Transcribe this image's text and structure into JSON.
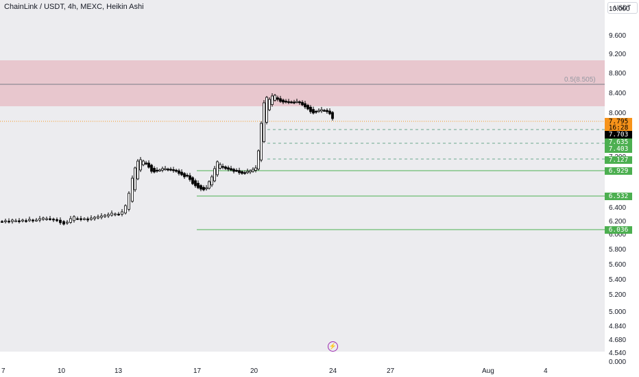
{
  "header": {
    "title": "ChainLink / USDT, 4h, MEXC, Heikin Ashi"
  },
  "price_axis": {
    "currency": "USDT",
    "ticks": [
      "10.000",
      "9.600",
      "9.200",
      "8.800",
      "8.400",
      "8.000",
      "7.200",
      "6.600",
      "6.400",
      "6.200",
      "6.000",
      "5.800",
      "5.600",
      "5.400",
      "5.200",
      "5.000",
      "4.840",
      "4.680",
      "4.540",
      "0.000"
    ]
  },
  "time_axis": {
    "ticks": [
      "7",
      "10",
      "13",
      "17",
      "20",
      "24",
      "27",
      "Aug",
      "4"
    ]
  },
  "price_tags": [
    {
      "text": "7.795",
      "kind": "current"
    },
    {
      "text": "16:28",
      "kind": "countdown"
    },
    {
      "text": "7.703",
      "kind": "last"
    },
    {
      "text": "7.635",
      "kind": "level"
    },
    {
      "text": "7.403",
      "kind": "level"
    },
    {
      "text": "7.127",
      "kind": "level"
    },
    {
      "text": "6.929",
      "kind": "level"
    },
    {
      "text": "6.532",
      "kind": "level"
    },
    {
      "text": "6.036",
      "kind": "level"
    }
  ],
  "fib_label": "0.5(8.505)",
  "icons": {
    "replay": "lightning-icon"
  },
  "colors": {
    "zone": "#e8c3ca",
    "current_price": "#f7931a",
    "last_price": "#000000",
    "support": "#4caf50",
    "fib_line": "#787b86",
    "replay": "#9c27b0"
  }
}
